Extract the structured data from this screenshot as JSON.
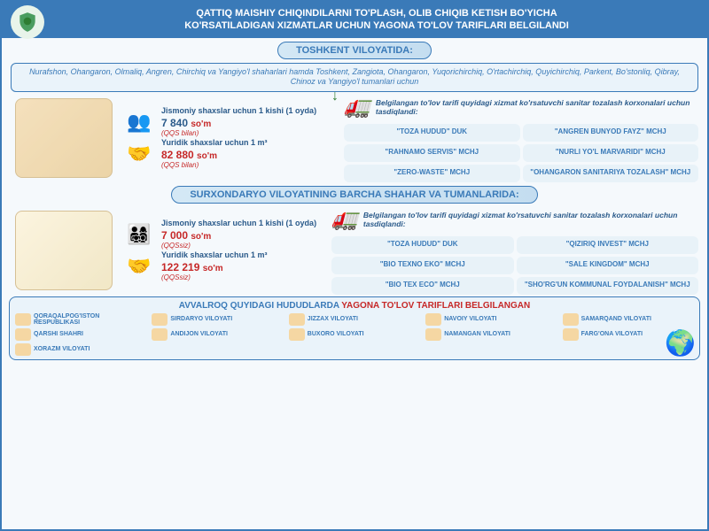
{
  "header": {
    "line1": "QATTIQ MAISHIY CHIQINDILARNI TO'PLASH, OLIB CHIQIB KETISH BO'YICHA",
    "line2": "KO'RSATILADIGAN XIZMATLAR UCHUN YAGONA TO'LOV TARIFLARI BELGILANDI"
  },
  "region1": {
    "title": "TOSHKENT VILOYATIDA:",
    "subtitle": "Nurafshon, Ohangaron, Olmaliq, Angren, Chirchiq va Yangiyo'l shaharlari hamda Toshkent, Zangiota, Ohangaron, Yuqorichirchiq, O'rtachirchiq, Quyichirchiq, Parkent, Bo'stonliq, Qibray, Chinoz va Yangiyo'l tumanlari uchun",
    "phys_label": "Jismoniy shaxslar uchun 1 kishi (1 oyda)",
    "phys_price": "7 840",
    "phys_note": "(QQS bilan)",
    "legal_label": "Yuridik shaxslar uchun 1 m³",
    "legal_price": "82 880",
    "legal_note": "(QQS bilan)",
    "currency": "so'm",
    "comp_header": "Belgilangan to'lov tarifi quyidagi xizmat ko'rsatuvchi sanitar tozalash korxonalari uchun tasdiqlandi:",
    "companies": [
      "\"TOZA HUDUD\" DUK",
      "\"ANGREN BUNYOD FAYZ\" MCHJ",
      "\"RAHNAMO SERVIS\" MCHJ",
      "\"NURLI YO'L MARVARIDI\" MCHJ",
      "\"ZERO-WASTE\" MCHJ",
      "\"OHANGARON SANITARIYA TOZALASH\" MCHJ"
    ]
  },
  "region2": {
    "title": "SURXONDARYO VILOYATINING BARCHA SHAHAR VA TUMANLARIDA:",
    "phys_label": "Jismoniy shaxslar uchun 1 kishi (1 oyda)",
    "phys_price": "7 000",
    "phys_note": "(QQSsiz)",
    "legal_label": "Yuridik shaxslar uchun 1 m³",
    "legal_price": "122 219",
    "legal_note": "(QQSsiz)",
    "currency": "so'm",
    "comp_header": "Belgilangan to'lov tarifi quyidagi xizmat ko'rsatuvchi sanitar tozalash korxonalari uchun tasdiqlandi:",
    "companies": [
      "\"TOZA HUDUD\" DUK",
      "\"QIZIRIQ INVEST\" MCHJ",
      "\"BIO TEXNO EKO\" MCHJ",
      "\"SALE KINGDOM\" MCHJ",
      "\"BIO TEX ECO\" MCHJ",
      "\"SHO'RG'UN KOMMUNAL FOYDALANISH\" MCHJ"
    ]
  },
  "footer": {
    "title_pre": "AVVALROQ QUYIDAGI HUDUDLARDA ",
    "title_red": "YAGONA TO'LOV TARIFLARI BELGILANGAN",
    "regions": [
      "QORAQALPOG'ISTON RESPUBLIKASI",
      "SIRDARYO VILOYATI",
      "JIZZAX VILOYATI",
      "NAVOIY VILOYATI",
      "SAMARQAND VILOYATI",
      "QARSHI SHAHRI",
      "ANDIJON VILOYATI",
      "BUXORO VILOYATI",
      "NAMANGAN VILOYATI",
      "FARG'ONA VILOYATI",
      "XORAZM VILOYATI"
    ]
  },
  "colors": {
    "primary": "#3a7ab8",
    "accent": "#c62828",
    "bg": "#f5f9fc"
  }
}
